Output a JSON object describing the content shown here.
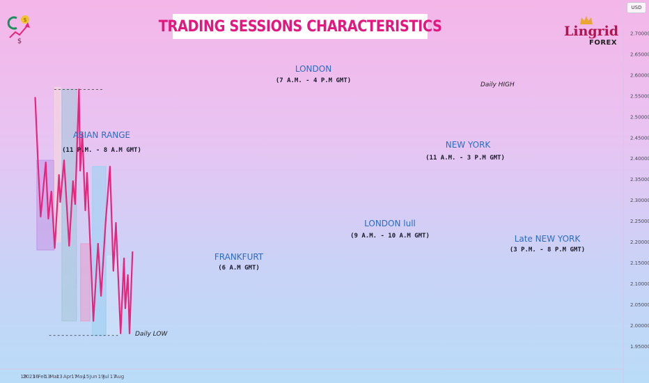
{
  "title": "TRADING SESSIONS CHARACTERISTICS",
  "currency": "USD",
  "brand": {
    "name": "Lingrid",
    "sub": "FOREX",
    "logo_icon": "dollar-growth-icon"
  },
  "sessions": [
    {
      "name": "ASIAN RANGE",
      "time": "(11 P.M. - 8 A.M GMT)",
      "color": "#c59be6",
      "x_start": "2023-01-19",
      "x_end": "2023-03-01",
      "y_low": 2.18,
      "y_high": 2.395
    },
    {
      "name": "FRANKFURT",
      "time": "(6 A.M GMT)",
      "color": "#f6d6de",
      "x_start": "2023-03-02",
      "x_end": "2023-03-16",
      "y_low": 2.2,
      "y_high": 2.57
    },
    {
      "name": "LONDON",
      "time": "(7 A.M. - 4 P.M GMT)",
      "color": "#a9c8dc",
      "x_start": "2023-03-19",
      "x_end": "2023-04-22",
      "y_low": 2.01,
      "y_high": 2.565
    },
    {
      "name": "LONDON lull",
      "time": "(9 A.M. - 10 A.M GMT)",
      "color": "#e7a2cf",
      "x_start": "2023-05-02",
      "x_end": "2023-05-24",
      "y_low": 2.01,
      "y_high": 2.195
    },
    {
      "name": "NEW YORK",
      "time": "(11 A.M. - 3 P.M GMT)",
      "color": "#9fd2f2",
      "x_start": "2023-05-30",
      "x_end": "2023-06-30",
      "y_low": 1.975,
      "y_high": 2.38
    },
    {
      "name": "Late NEW YORK",
      "time": "(3 P.M. - 8 P.M GMT)",
      "color": "#cfe2f8",
      "x_start": "2023-07-04",
      "x_end": "2023-08-01",
      "y_low": 1.975,
      "y_high": 2.165
    }
  ],
  "levels": [
    {
      "label": "Daily HIGH",
      "value": 2.565,
      "x_start": "2023-03-01",
      "x_end": "2023-06-25"
    },
    {
      "label": "Daily LOW",
      "value": 1.975,
      "x_start": "2023-02-17",
      "x_end": "2023-08-01"
    }
  ],
  "chart_data": {
    "type": "line",
    "series": [
      {
        "color": "#e8247d",
        "points": [
          [
            "2023-01-15",
            2.545
          ],
          [
            "2023-01-22",
            2.38
          ],
          [
            "2023-01-28",
            2.26
          ],
          [
            "2023-02-09",
            2.39
          ],
          [
            "2023-02-15",
            2.255
          ],
          [
            "2023-02-22",
            2.32
          ],
          [
            "2023-03-02",
            2.185
          ],
          [
            "2023-03-12",
            2.36
          ],
          [
            "2023-03-15",
            2.295
          ],
          [
            "2023-03-24",
            2.395
          ],
          [
            "2023-04-05",
            2.19
          ],
          [
            "2023-04-14",
            2.345
          ],
          [
            "2023-04-19",
            2.29
          ],
          [
            "2023-04-28",
            2.565
          ],
          [
            "2023-05-01",
            2.37
          ],
          [
            "2023-05-06",
            2.46
          ],
          [
            "2023-05-13",
            2.275
          ],
          [
            "2023-05-17",
            2.365
          ],
          [
            "2023-05-25",
            2.185
          ],
          [
            "2023-06-01",
            2.01
          ],
          [
            "2023-06-12",
            2.195
          ],
          [
            "2023-06-19",
            2.07
          ],
          [
            "2023-06-30",
            2.25
          ],
          [
            "2023-07-10",
            2.38
          ],
          [
            "2023-07-18",
            2.13
          ],
          [
            "2023-07-24",
            2.245
          ],
          [
            "2023-08-04",
            1.98
          ],
          [
            "2023-08-12",
            2.16
          ],
          [
            "2023-08-15",
            2.04
          ],
          [
            "2023-08-21",
            2.12
          ],
          [
            "2023-08-25",
            1.98
          ],
          [
            "2023-09-01",
            2.175
          ]
        ]
      }
    ],
    "y_ticks": [
      "2.70000",
      "2.65000",
      "2.60000",
      "2.55000",
      "2.50000",
      "2.45000",
      "2.40000",
      "2.35000",
      "2.30000",
      "2.25000",
      "2.20000",
      "2.15000",
      "2.10000",
      "2.05000",
      "2.00000",
      "1.95000"
    ],
    "y_tick_values": [
      2.7,
      2.65,
      2.6,
      2.55,
      2.5,
      2.45,
      2.4,
      2.35,
      2.3,
      2.25,
      2.2,
      2.15,
      2.1,
      2.05,
      2.0,
      1.95
    ],
    "x_ticks": [
      {
        "label": "19",
        "date": "2022-12-19"
      },
      {
        "label": "2023",
        "date": "2023-01-01"
      },
      {
        "label": "16",
        "date": "2023-01-16"
      },
      {
        "label": "Feb",
        "date": "2023-02-01"
      },
      {
        "label": "13",
        "date": "2023-02-13"
      },
      {
        "label": "Mar",
        "date": "2023-03-01"
      },
      {
        "label": "13",
        "date": "2023-03-13"
      },
      {
        "label": "Apr",
        "date": "2023-04-01"
      },
      {
        "label": "17",
        "date": "2023-04-17"
      },
      {
        "label": "May",
        "date": "2023-05-01"
      },
      {
        "label": "15",
        "date": "2023-05-15"
      },
      {
        "label": "Jun",
        "date": "2023-06-01"
      },
      {
        "label": "19",
        "date": "2023-06-19"
      },
      {
        "label": "Jul",
        "date": "2023-07-01"
      },
      {
        "label": "17",
        "date": "2023-07-17"
      },
      {
        "label": "Aug",
        "date": "2023-08-01"
      }
    ]
  }
}
